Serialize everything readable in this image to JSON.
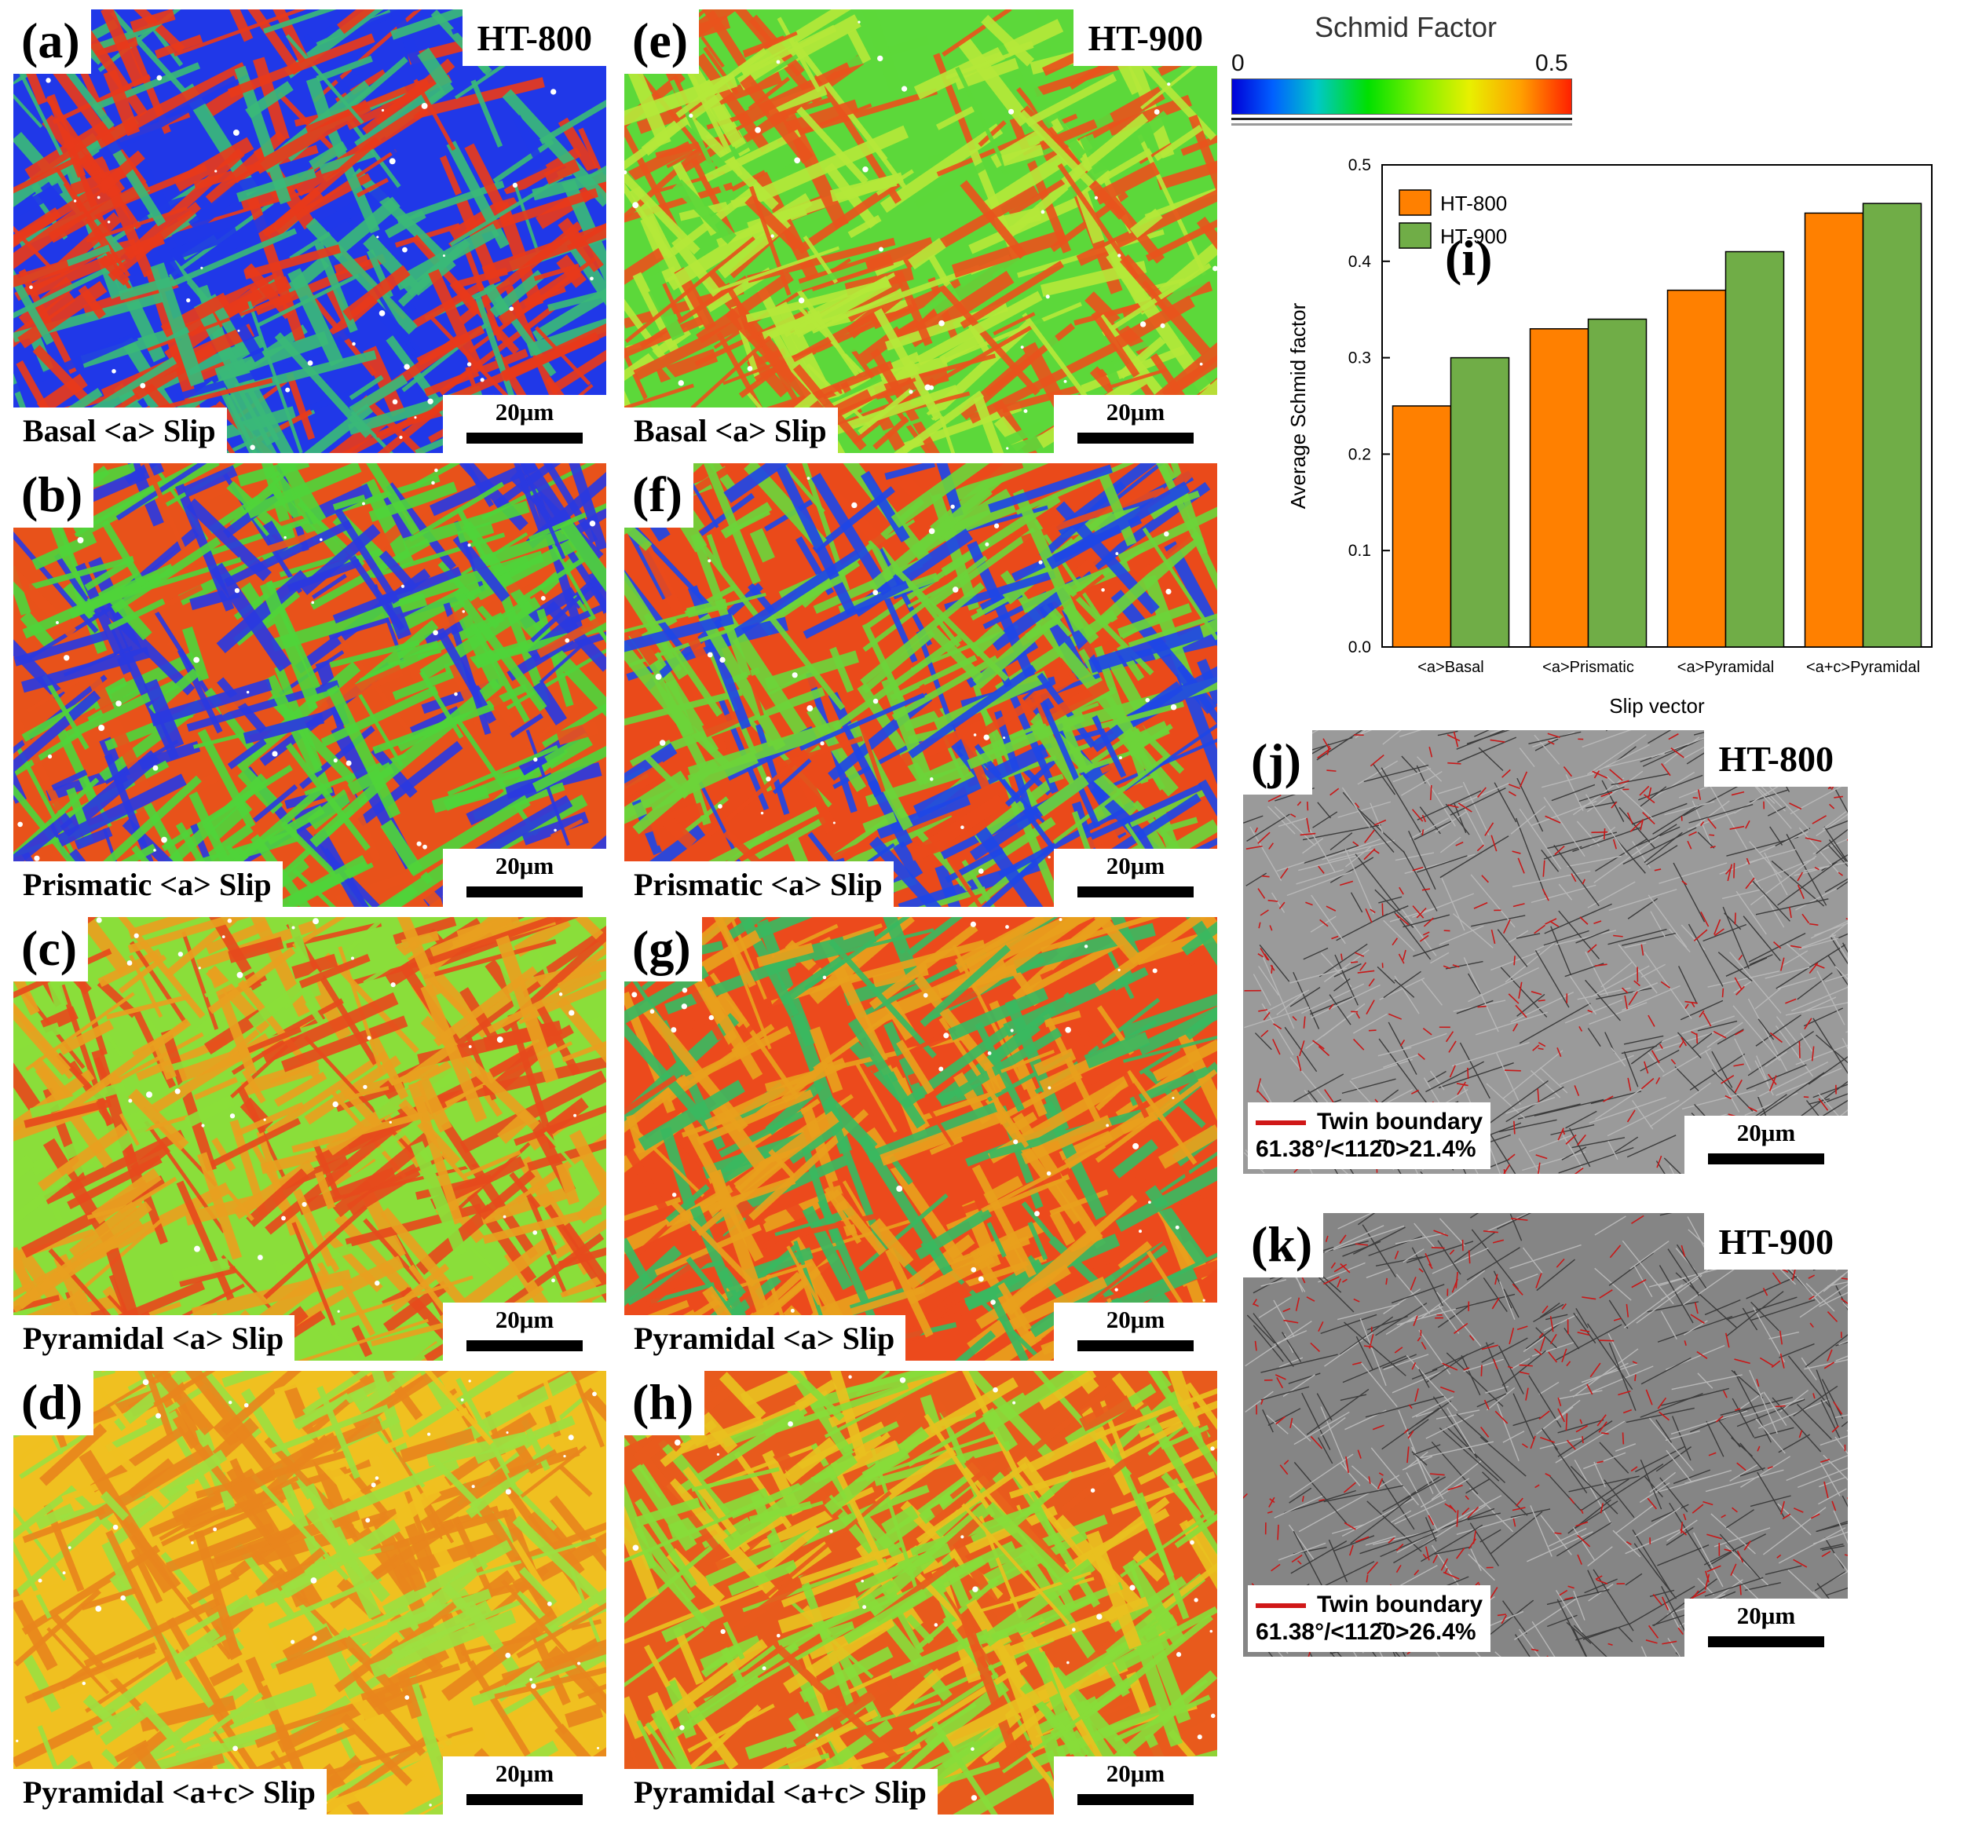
{
  "figure": {
    "colorbar": {
      "title": "Schmid Factor",
      "min_label": "0",
      "max_label": "0.5"
    },
    "panels": [
      {
        "id": "a",
        "letter": "(a)",
        "tag": "HT-800",
        "slip": "Basal <a> Slip",
        "scale": "20μm",
        "palette": [
          "#2038e8",
          "#e83a1a",
          "#3ab878"
        ]
      },
      {
        "id": "b",
        "letter": "(b)",
        "tag": "",
        "slip": "Prismatic <a> Slip",
        "scale": "20μm",
        "palette": [
          "#e8521a",
          "#4fd43a",
          "#2a3ae0"
        ]
      },
      {
        "id": "c",
        "letter": "(c)",
        "tag": "",
        "slip": "Pyramidal <a> Slip",
        "scale": "20μm",
        "palette": [
          "#8ade3a",
          "#e8a020",
          "#e64a1c"
        ]
      },
      {
        "id": "d",
        "letter": "(d)",
        "tag": "",
        "slip": "Pyramidal <a+c> Slip",
        "scale": "20μm",
        "palette": [
          "#f0c020",
          "#e8861c",
          "#9ce040"
        ]
      },
      {
        "id": "e",
        "letter": "(e)",
        "tag": "HT-900",
        "slip": "Basal <a> Slip",
        "scale": "20μm",
        "palette": [
          "#5cd83a",
          "#e8541c",
          "#b4e83a"
        ]
      },
      {
        "id": "f",
        "letter": "(f)",
        "tag": "",
        "slip": "Prismatic <a> Slip",
        "scale": "20μm",
        "palette": [
          "#ea4a1a",
          "#6cd43a",
          "#1e46e6"
        ]
      },
      {
        "id": "g",
        "letter": "(g)",
        "tag": "",
        "slip": "Pyramidal <a> Slip",
        "scale": "20μm",
        "palette": [
          "#ec4a1c",
          "#e8a01c",
          "#3ab860"
        ]
      },
      {
        "id": "h",
        "letter": "(h)",
        "tag": "",
        "slip": "Pyramidal <a+c> Slip",
        "scale": "20μm",
        "palette": [
          "#e85a1c",
          "#88dc3a",
          "#e8c020"
        ]
      }
    ],
    "twin_panels": [
      {
        "id": "j",
        "letter": "(j)",
        "tag": "HT-800",
        "legend_label": "Twin boundary",
        "legend_value": "61.38°/<112̄0>21.4%",
        "scale": "20μm"
      },
      {
        "id": "k",
        "letter": "(k)",
        "tag": "HT-900",
        "legend_label": "Twin boundary",
        "legend_value": "61.38°/<112̄0>26.4%",
        "scale": "20μm"
      }
    ]
  },
  "chart_data": {
    "type": "bar",
    "panel_label": "(i)",
    "categories": [
      "<a>Basal",
      "<a>Prismatic",
      "<a>Pyramidal",
      "<a+c>Pyramidal"
    ],
    "series": [
      {
        "name": "HT-800",
        "values": [
          0.25,
          0.33,
          0.37,
          0.45
        ],
        "color": "#ff8000"
      },
      {
        "name": "HT-900",
        "values": [
          0.3,
          0.34,
          0.41,
          0.46
        ],
        "color": "#70ad47"
      }
    ],
    "xlabel": "Slip vector",
    "ylabel": "Average Schmid factor",
    "ylim": [
      0,
      0.5
    ],
    "yticks": [
      "0.0",
      "0.1",
      "0.2",
      "0.3",
      "0.4",
      "0.5"
    ],
    "grid": false,
    "legend_position": "top-left"
  }
}
